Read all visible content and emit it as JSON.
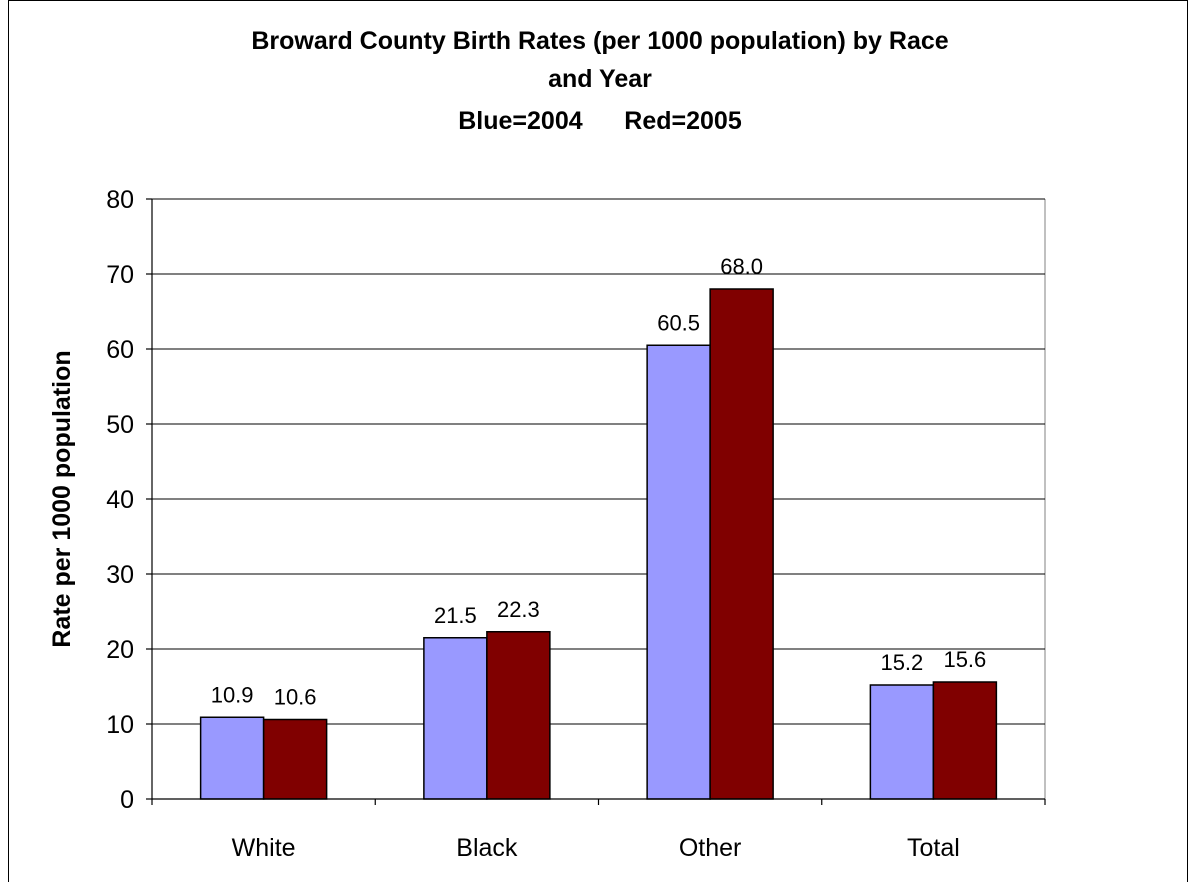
{
  "chart_data": {
    "type": "bar",
    "title_lines": [
      "Broward County Birth Rates (per 1000 population) by Race",
      "and Year",
      "Blue=2004      Red=2005"
    ],
    "xlabel": "",
    "ylabel": "Rate per 1000 population",
    "categories": [
      "White",
      "Black",
      "Other",
      "Total"
    ],
    "series": [
      {
        "values": [
          10.9,
          21.5,
          60.5,
          15.2
        ],
        "color": "#9999ff"
      },
      {
        "values": [
          10.6,
          22.3,
          68.0,
          15.6
        ],
        "color": "#800000"
      }
    ],
    "data_labels": [
      [
        "10.9",
        "21.5",
        "60.5",
        "15.2"
      ],
      [
        "10.6",
        "22.3",
        "68.0",
        "15.6"
      ]
    ],
    "ylim": [
      0,
      80
    ],
    "yticks": [
      0,
      10,
      20,
      30,
      40,
      50,
      60,
      70,
      80
    ],
    "grid": true,
    "legend": "none"
  }
}
